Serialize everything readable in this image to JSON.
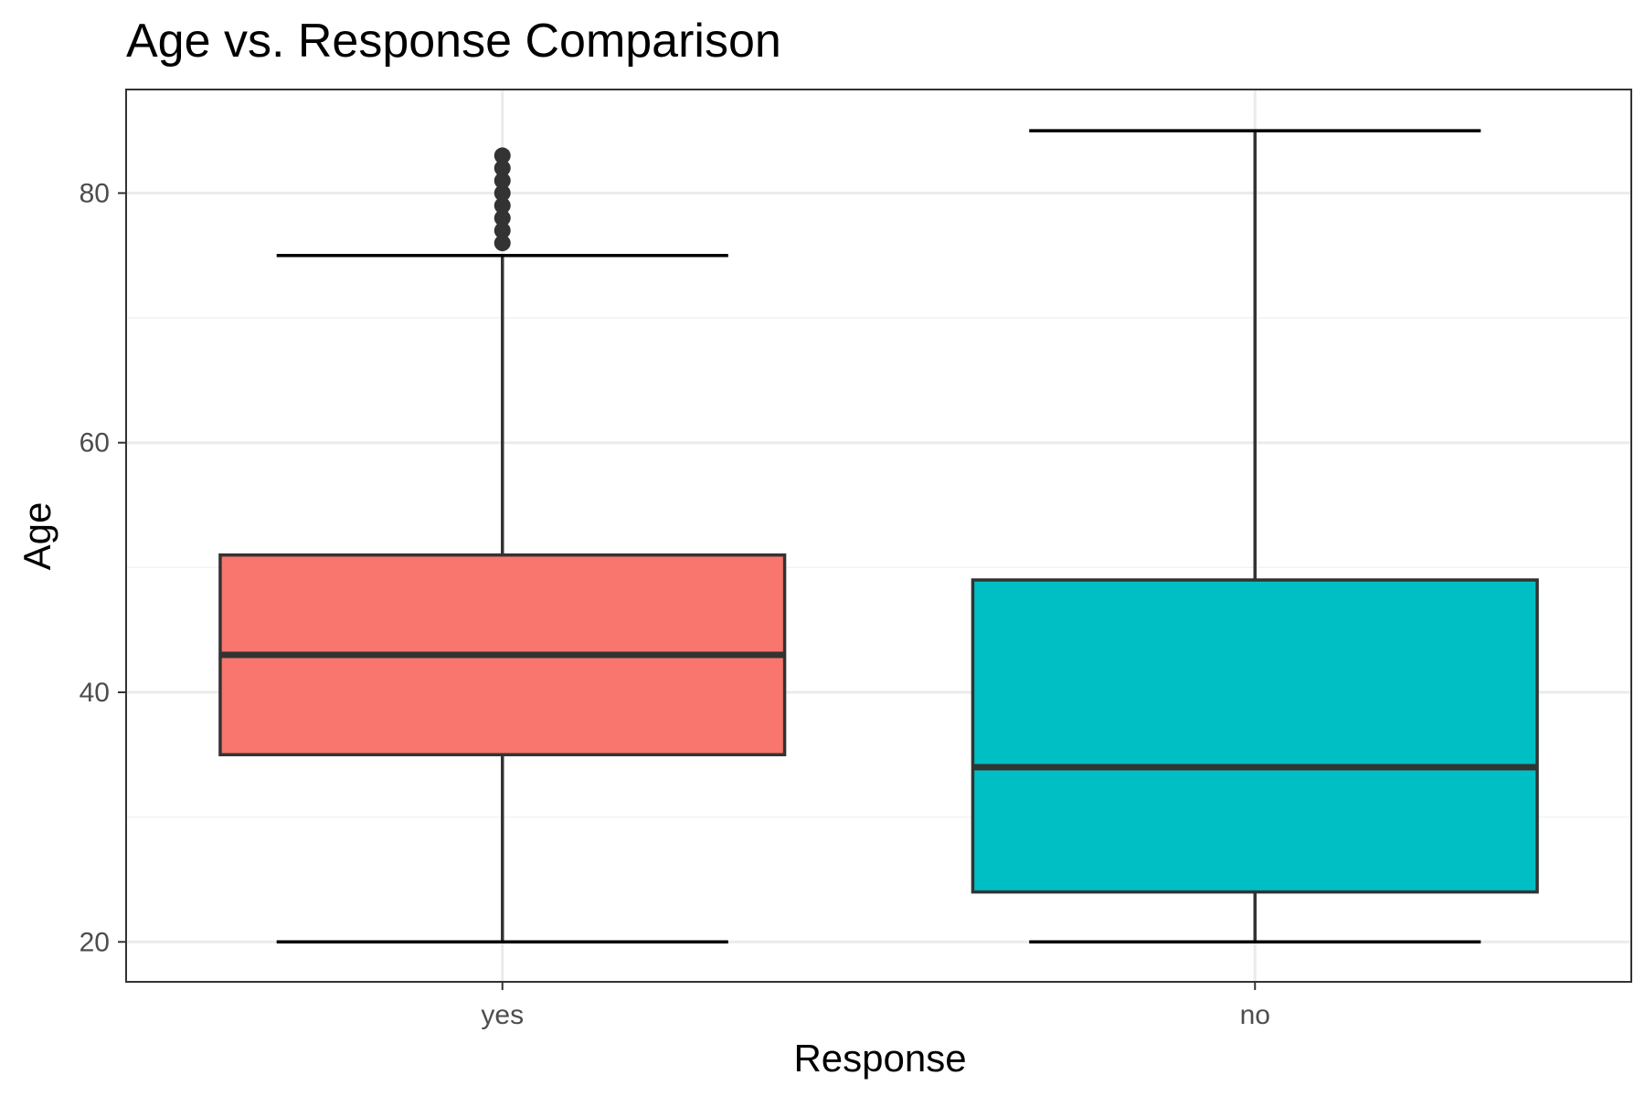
{
  "chart_data": {
    "type": "boxplot",
    "title": "Age vs. Response Comparison",
    "xlabel": "Response",
    "ylabel": "Age",
    "ylim": [
      16.8,
      88.3
    ],
    "y_ticks": [
      20,
      40,
      60,
      80
    ],
    "y_minor_ticks": [
      30,
      50,
      70
    ],
    "grid": true,
    "legend": "none",
    "categories": [
      "yes",
      "no"
    ],
    "boxes": [
      {
        "category": "yes",
        "whisker_low": 20,
        "q1": 35,
        "median": 43,
        "q3": 51,
        "whisker_high": 75,
        "outliers": [
          76,
          77,
          78,
          79,
          80,
          81,
          82,
          83
        ],
        "fill": "#F8766D"
      },
      {
        "category": "no",
        "whisker_low": 20,
        "q1": 24,
        "median": 34,
        "q3": 49,
        "whisker_high": 85,
        "outliers": [],
        "fill": "#00BFC4"
      }
    ],
    "colors": {
      "outline": "#333333",
      "whisker_cap": "#000000",
      "panel_border": "#333333",
      "grid_major": "#ebebeb",
      "grid_minor": "#f2f2f2",
      "tick_text": "#4d4d4d"
    }
  }
}
